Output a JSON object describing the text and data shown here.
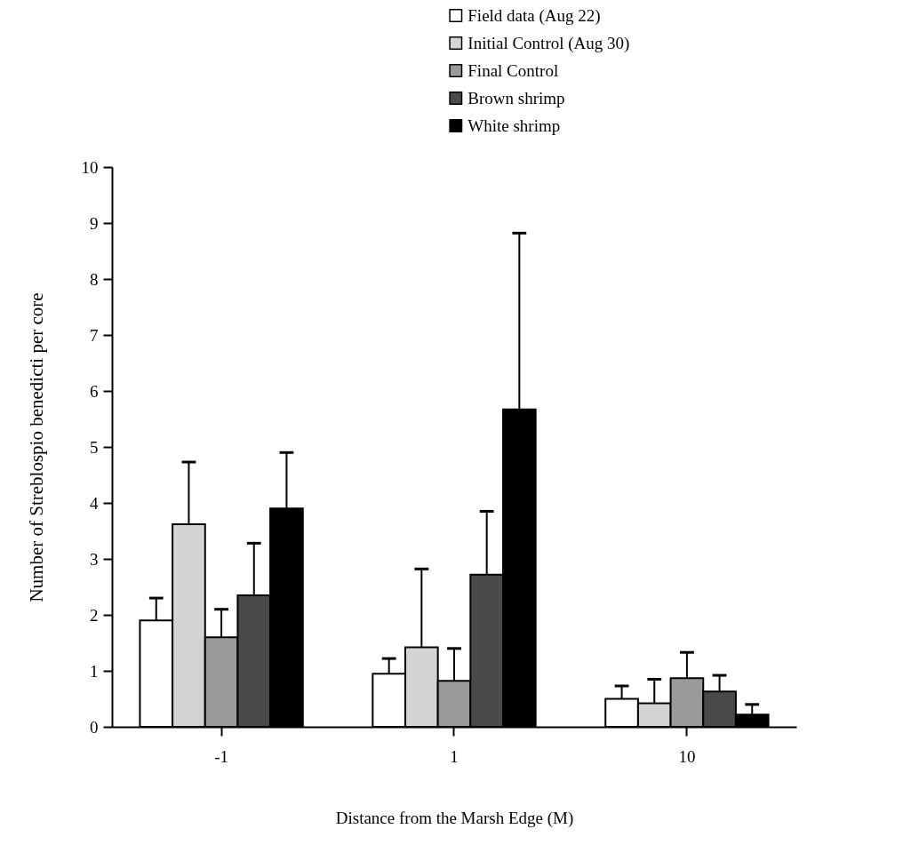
{
  "chart_data": {
    "type": "bar",
    "xlabel": "Distance from the Marsh Edge (M)",
    "ylabel": "Number of Streblospio benedicti per core",
    "categories": [
      "-1",
      "1",
      "10"
    ],
    "series": [
      {
        "name": "Field data (Aug 22)",
        "color": "#ffffff",
        "values": [
          1.9,
          0.95,
          0.5
        ],
        "errors": [
          [
            1.9,
            2.3
          ],
          [
            0.95,
            1.22
          ],
          [
            0.5,
            0.73
          ]
        ]
      },
      {
        "name": "Initial Control (Aug 30)",
        "color": "#d4d4d4",
        "values": [
          3.62,
          1.42,
          0.42
        ],
        "errors": [
          [
            3.62,
            4.73
          ],
          [
            1.42,
            2.82
          ],
          [
            0.42,
            0.85
          ]
        ]
      },
      {
        "name": "Final Control",
        "color": "#9a9a9a",
        "values": [
          1.6,
          0.82,
          0.87
        ],
        "errors": [
          [
            1.6,
            2.1
          ],
          [
            0.82,
            1.4
          ],
          [
            0.87,
            1.33
          ]
        ]
      },
      {
        "name": "Brown shrimp",
        "color": "#4a4a4a",
        "values": [
          2.35,
          2.72,
          0.63
        ],
        "errors": [
          [
            2.35,
            3.28
          ],
          [
            2.72,
            3.85
          ],
          [
            0.63,
            0.92
          ]
        ]
      },
      {
        "name": "White shrimp",
        "color": "#000000",
        "values": [
          3.9,
          5.67,
          0.22
        ],
        "errors": [
          [
            3.9,
            4.9
          ],
          [
            5.67,
            8.82
          ],
          [
            0.22,
            0.4
          ]
        ]
      }
    ],
    "ylim": [
      0,
      10
    ],
    "yticks": [
      0,
      1,
      2,
      3,
      4,
      5,
      6,
      7,
      8,
      9,
      10
    ],
    "grid": false,
    "legend": "top right"
  }
}
